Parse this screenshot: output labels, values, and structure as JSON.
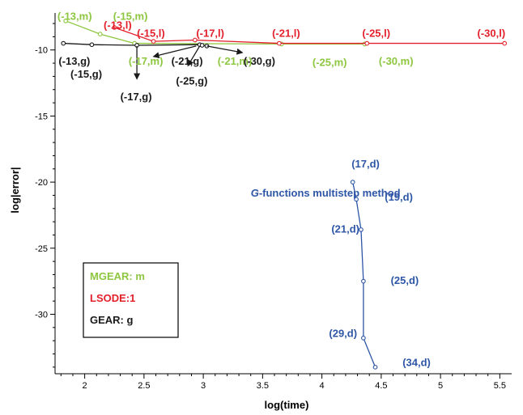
{
  "chart_data": {
    "type": "line",
    "xlabel": "log(time)",
    "ylabel": "log|error|",
    "xlim": [
      1.75,
      5.6
    ],
    "ylim": [
      -34.5,
      -7.2
    ],
    "x_ticks": [
      "2",
      "2.5",
      "3",
      "3.5",
      "4",
      "4.5",
      "5",
      "5.5"
    ],
    "y_ticks": [
      "-10",
      "-15",
      "-20",
      "-25",
      "-30"
    ],
    "series": [
      {
        "key": "mgear",
        "color": "#8dc63f",
        "x": [
          1.84,
          2.13,
          2.42,
          3.66,
          4.36
        ],
        "y": [
          -7.8,
          -8.8,
          -9.5,
          -9.55,
          -9.55
        ]
      },
      {
        "key": "lsode",
        "color": "#e3202b",
        "x": [
          2.25,
          2.58,
          2.93,
          3.64,
          4.38,
          5.54
        ],
        "y": [
          -8.3,
          -9.35,
          -9.25,
          -9.5,
          -9.5,
          -9.5
        ]
      },
      {
        "key": "gear",
        "color": "#1a1a1a",
        "x": [
          1.82,
          2.06,
          2.44,
          2.97,
          2.99,
          3.03
        ],
        "y": [
          -9.5,
          -9.6,
          -9.65,
          -9.6,
          -9.65,
          -9.7
        ]
      },
      {
        "key": "gfunc",
        "color": "#2e56a6",
        "x": [
          4.26,
          4.29,
          4.33,
          4.35,
          4.35,
          4.45
        ],
        "y": [
          -20.0,
          -21.3,
          -23.6,
          -27.5,
          -31.8,
          -34.0
        ]
      }
    ],
    "annotations": [
      {
        "text": "(-13,m)",
        "color": "#8dc63f",
        "x": 1.77,
        "y": -7.4
      },
      {
        "text": "(-15,m)",
        "color": "#8dc63f",
        "x": 2.24,
        "y": -7.4
      },
      {
        "text": "(-13,l)",
        "color": "#e3202b",
        "x": 2.16,
        "y": -8.1
      },
      {
        "text": "(-15,l)",
        "color": "#e3202b",
        "x": 2.44,
        "y": -8.7
      },
      {
        "text": "(-17,l)",
        "color": "#e3202b",
        "x": 2.94,
        "y": -8.7
      },
      {
        "text": "(-21,l)",
        "color": "#e3202b",
        "x": 3.58,
        "y": -8.7
      },
      {
        "text": "(-25,l)",
        "color": "#e3202b",
        "x": 4.34,
        "y": -8.7
      },
      {
        "text": "(-30,l)",
        "color": "#e3202b",
        "x": 5.31,
        "y": -8.7
      },
      {
        "text": "(-13,g)",
        "color": "#1a1a1a",
        "x": 1.78,
        "y": -10.8
      },
      {
        "text": "(-15,g)",
        "color": "#1a1a1a",
        "x": 1.88,
        "y": -11.8
      },
      {
        "text": "(-17,m)",
        "color": "#8dc63f",
        "x": 2.37,
        "y": -10.8
      },
      {
        "text": "(-17,g)",
        "color": "#1a1a1a",
        "x": 2.3,
        "y": -13.5
      },
      {
        "text": "(-21,g)",
        "color": "#1a1a1a",
        "x": 2.73,
        "y": -10.8
      },
      {
        "text": "(-25,g)",
        "color": "#1a1a1a",
        "x": 2.77,
        "y": -12.3
      },
      {
        "text": "(-21,m)",
        "color": "#8dc63f",
        "x": 3.12,
        "y": -10.8
      },
      {
        "text": "(-30,g)",
        "color": "#1a1a1a",
        "x": 3.34,
        "y": -10.8
      },
      {
        "text": "(-25,m)",
        "color": "#8dc63f",
        "x": 3.92,
        "y": -10.9
      },
      {
        "text": "(-30,m)",
        "color": "#8dc63f",
        "x": 4.48,
        "y": -10.8
      },
      {
        "text": "(17,d)",
        "color": "#2e56a6",
        "x": 4.25,
        "y": -18.6
      },
      {
        "text": "(19,d)",
        "color": "#2e56a6",
        "x": 4.53,
        "y": -21.1
      },
      {
        "text": "(21,d)",
        "color": "#2e56a6",
        "x": 4.08,
        "y": -23.5
      },
      {
        "text": "(25,d)",
        "color": "#2e56a6",
        "x": 4.58,
        "y": -27.4
      },
      {
        "text": "(29,d)",
        "color": "#2e56a6",
        "x": 4.06,
        "y": -31.4
      },
      {
        "text": "(34,d)",
        "color": "#2e56a6",
        "x": 4.68,
        "y": -33.6
      },
      {
        "text": "G-functions multistep method",
        "color": "#2e56a6",
        "x": 3.4,
        "y": -20.8,
        "emph_prefix": "G"
      }
    ],
    "arrows": [
      {
        "from": [
          2.44,
          -9.7
        ],
        "to": [
          2.44,
          -12.2
        ]
      },
      {
        "from": [
          2.97,
          -9.7
        ],
        "to": [
          2.87,
          -11.2
        ]
      },
      {
        "from": [
          2.94,
          -9.7
        ],
        "to": [
          2.58,
          -10.5
        ]
      },
      {
        "from": [
          3.03,
          -9.7
        ],
        "to": [
          3.33,
          -10.2
        ]
      }
    ],
    "legend": {
      "position": "bottom-left",
      "entries": [
        {
          "text": "MGEAR: m",
          "color": "#8dc63f"
        },
        {
          "text": "LSODE:1",
          "color": "#e3202b"
        },
        {
          "text": "GEAR: g",
          "color": "#1a1a1a"
        }
      ]
    }
  }
}
